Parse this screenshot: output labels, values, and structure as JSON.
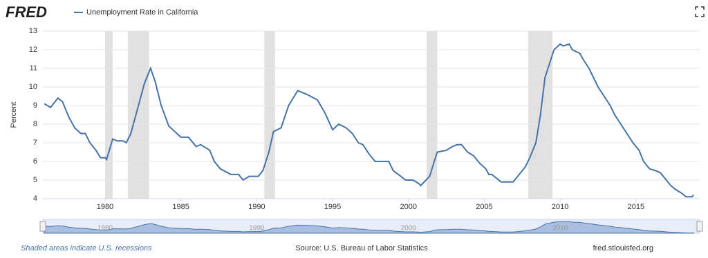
{
  "header": {
    "logo": "FRED"
  },
  "chart_data": {
    "type": "line",
    "x": [
      1976.0,
      1976.4,
      1976.9,
      1977.2,
      1977.6,
      1978.0,
      1978.4,
      1978.7,
      1979.0,
      1979.4,
      1979.7,
      1980.0,
      1980.1,
      1980.5,
      1980.8,
      1981.2,
      1981.4,
      1981.7,
      1982.2,
      1982.6,
      1983.0,
      1983.3,
      1983.7,
      1984.2,
      1984.6,
      1985.0,
      1985.5,
      1986.0,
      1986.3,
      1986.9,
      1987.2,
      1987.6,
      1988.3,
      1988.8,
      1989.1,
      1989.5,
      1990.1,
      1990.4,
      1990.8,
      1991.1,
      1991.6,
      1992.1,
      1992.7,
      1993.3,
      1994.0,
      1994.5,
      1995.0,
      1995.4,
      1995.9,
      1996.3,
      1996.7,
      1997.0,
      1997.4,
      1997.8,
      1998.7,
      1999.0,
      1999.5,
      1999.8,
      2000.3,
      2000.7,
      2000.8,
      2001.4,
      2001.7,
      2001.9,
      2002.5,
      2002.9,
      2003.2,
      2003.5,
      2003.9,
      2004.3,
      2004.7,
      2005.1,
      2005.3,
      2005.5,
      2006.1,
      2006.9,
      2007.2,
      2007.7,
      2008.0,
      2008.4,
      2008.7,
      2009.0,
      2009.4,
      2009.6,
      2010.0,
      2010.2,
      2010.6,
      2010.8,
      2011.3,
      2011.5,
      2011.9,
      2012.2,
      2012.5,
      2012.9,
      2013.3,
      2013.6,
      2014.0,
      2014.4,
      2014.8,
      2015.2,
      2015.5,
      2015.9,
      2016.3,
      2016.6,
      2017.0,
      2017.3,
      2017.6,
      2018.0,
      2018.3,
      2018.7,
      2018.8
    ],
    "series": [
      {
        "name": "Unemployment Rate in California",
        "color": "#4572a7",
        "values": [
          9.1,
          8.9,
          9.4,
          9.2,
          8.4,
          7.8,
          7.5,
          7.5,
          7.0,
          6.6,
          6.2,
          6.2,
          6.1,
          7.2,
          7.1,
          7.1,
          7.0,
          7.5,
          9.0,
          10.2,
          11.0,
          10.3,
          9.0,
          7.9,
          7.6,
          7.3,
          7.3,
          6.8,
          6.9,
          6.6,
          6.0,
          5.6,
          5.3,
          5.3,
          5.0,
          5.2,
          5.2,
          5.5,
          6.5,
          7.6,
          7.8,
          9.0,
          9.8,
          9.6,
          9.3,
          8.6,
          7.7,
          8.0,
          7.8,
          7.5,
          7.0,
          6.9,
          6.4,
          6.0,
          6.0,
          5.5,
          5.2,
          5.0,
          5.0,
          4.8,
          4.7,
          5.2,
          6.0,
          6.5,
          6.6,
          6.8,
          6.9,
          6.9,
          6.5,
          6.3,
          5.9,
          5.6,
          5.3,
          5.3,
          4.9,
          4.9,
          5.2,
          5.7,
          6.2,
          7.0,
          8.5,
          10.5,
          11.5,
          12.0,
          12.3,
          12.2,
          12.3,
          12.0,
          11.8,
          11.5,
          11.0,
          10.5,
          10.0,
          9.5,
          9.0,
          8.5,
          8.0,
          7.5,
          7.0,
          6.6,
          6.0,
          5.6,
          5.5,
          5.4,
          5.0,
          4.7,
          4.5,
          4.3,
          4.1,
          4.1,
          4.2
        ]
      }
    ],
    "recessions": [
      [
        1980.0,
        1980.5
      ],
      [
        1981.5,
        1982.9
      ],
      [
        1990.5,
        1991.2
      ],
      [
        2001.2,
        2001.9
      ],
      [
        2007.9,
        2009.5
      ]
    ],
    "y_label": "Percent",
    "xlim": [
      1975.9,
      2019.2
    ],
    "xticks": [
      1980,
      1985,
      1990,
      1995,
      2000,
      2005,
      2010,
      2015
    ],
    "ylim": [
      4,
      13
    ],
    "yticks": [
      4,
      5,
      6,
      7,
      8,
      9,
      10,
      11,
      12,
      13
    ],
    "grid": true,
    "navigator_xticks": [
      1980,
      1990,
      2000,
      2010
    ]
  },
  "footer": {
    "note": "Shaded areas indicate U.S. recessions",
    "source": "Source: U.S. Bureau of Labor Statistics",
    "site": "fred.stlouisfed.org"
  }
}
